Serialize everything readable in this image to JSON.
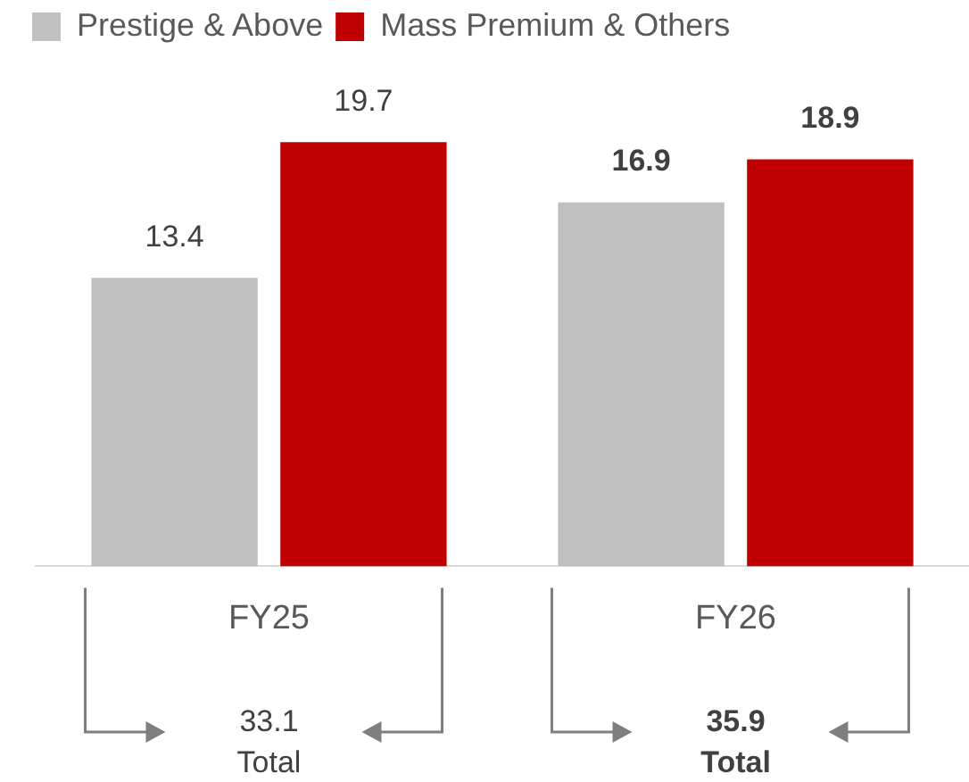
{
  "chart_data": {
    "type": "bar",
    "categories": [
      "FY25",
      "FY26"
    ],
    "series": [
      {
        "name": "Prestige & Above",
        "color": "#c0c0c0",
        "values": [
          13.4,
          16.9
        ]
      },
      {
        "name": "Mass Premium & Others",
        "color": "#c00000",
        "values": [
          19.7,
          18.9
        ]
      }
    ],
    "data_labels": true,
    "legend": "top",
    "grid": false,
    "relative": false,
    "annotations": [
      "33.1 Total",
      "35.9 Total"
    ]
  }
}
